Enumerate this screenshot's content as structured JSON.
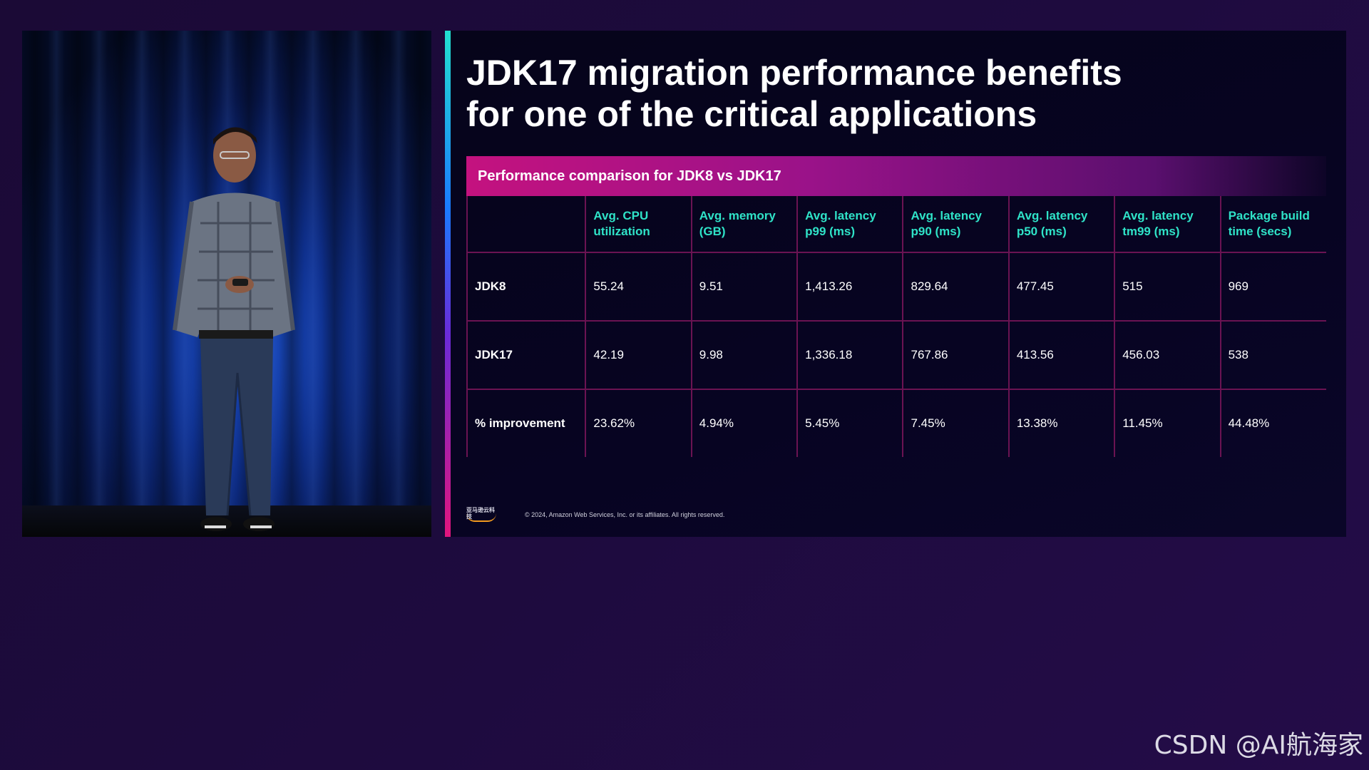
{
  "slide": {
    "title_line1": "JDK17 migration performance benefits",
    "title_line2": "for one of the critical applications",
    "table_title": "Performance comparison for JDK8 vs JDK17",
    "columns": [
      {
        "line1": "Avg. CPU",
        "line2": "utilization"
      },
      {
        "line1": "Avg. memory",
        "line2": "(GB)"
      },
      {
        "line1": "Avg. latency",
        "line2": "p99 (ms)"
      },
      {
        "line1": "Avg. latency",
        "line2": "p90 (ms)"
      },
      {
        "line1": "Avg. latency",
        "line2": "p50 (ms)"
      },
      {
        "line1": "Avg. latency",
        "line2": "tm99 (ms)"
      },
      {
        "line1": "Package build",
        "line2": "time (secs)"
      }
    ],
    "rows": [
      {
        "label": "JDK8",
        "values": [
          "55.24",
          "9.51",
          "1,413.26",
          "829.64",
          "477.45",
          "515",
          "969"
        ]
      },
      {
        "label": "JDK17",
        "values": [
          "42.19",
          "9.98",
          "1,336.18",
          "767.86",
          "413.56",
          "456.03",
          "538"
        ]
      },
      {
        "label": "% improvement",
        "values": [
          "23.62%",
          "4.94%",
          "5.45%",
          "7.45%",
          "13.38%",
          "11.45%",
          "44.48%"
        ]
      }
    ],
    "footer_logo": "亚马逊云科技",
    "copyright": "© 2024, Amazon Web Services, Inc. or its affiliates. All rights reserved."
  },
  "watermark": "CSDN @AI航海家"
}
